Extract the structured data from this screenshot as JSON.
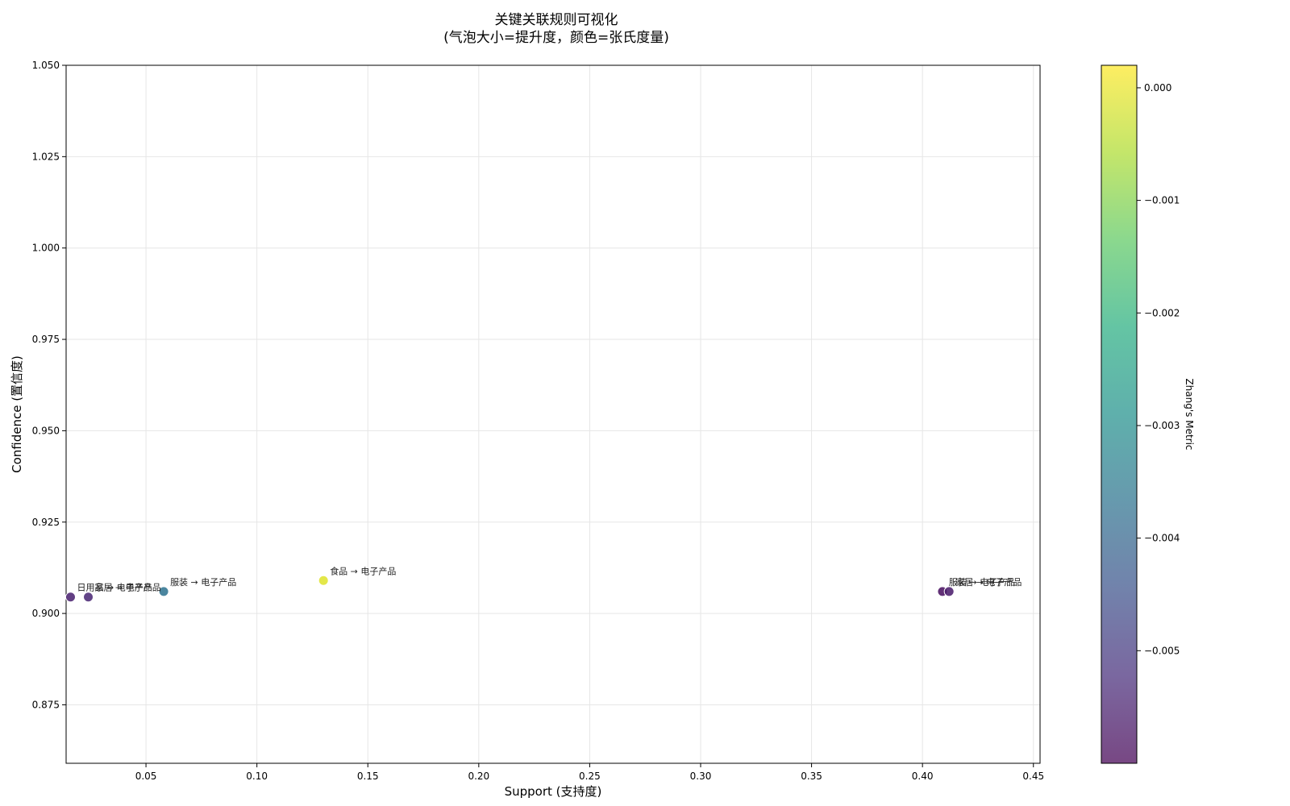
{
  "chart_data": {
    "type": "scatter",
    "title": "关键关联规则可视化",
    "subtitle": "(气泡大小=提升度，颜色=张氏度量)",
    "xlabel": "Support (支持度)",
    "ylabel": "Confidence (置信度)",
    "xlim": [
      0.014,
      0.453
    ],
    "ylim": [
      0.859,
      1.05
    ],
    "x_ticks": [
      0.05,
      0.1,
      0.15,
      0.2,
      0.25,
      0.3,
      0.35,
      0.4,
      0.45
    ],
    "x_tick_labels": [
      "0.05",
      "0.10",
      "0.15",
      "0.20",
      "0.25",
      "0.30",
      "0.35",
      "0.40",
      "0.45"
    ],
    "y_ticks": [
      0.875,
      0.9,
      0.925,
      0.95,
      0.975,
      1.0,
      1.025,
      1.05
    ],
    "y_tick_labels": [
      "0.875",
      "0.900",
      "0.925",
      "0.950",
      "0.975",
      "1.000",
      "1.025",
      "1.050"
    ],
    "grid": true,
    "colorbar": {
      "label": "Zhang's Metric",
      "range": [
        -0.006,
        0.0002
      ],
      "ticks": [
        0.0,
        -0.001,
        -0.002,
        -0.003,
        -0.004,
        -0.005
      ],
      "tick_labels": [
        "0.000",
        "−0.001",
        "−0.002",
        "−0.003",
        "−0.004",
        "−0.005"
      ],
      "colormap": "viridis"
    },
    "points": [
      {
        "x": 0.016,
        "y": 0.9045,
        "color_value": -0.0055,
        "label": "日用品 → 电子产品"
      },
      {
        "x": 0.024,
        "y": 0.9045,
        "color_value": -0.0054,
        "label": "家居 → 电子产品"
      },
      {
        "x": 0.058,
        "y": 0.906,
        "color_value": -0.0037,
        "label": "服装 → 电子产品"
      },
      {
        "x": 0.13,
        "y": 0.909,
        "color_value": -0.0001,
        "label": "食品 → 电子产品"
      },
      {
        "x": 0.409,
        "y": 0.906,
        "color_value": -0.0058,
        "label": "服装 → 电子产品"
      },
      {
        "x": 0.412,
        "y": 0.906,
        "color_value": -0.0056,
        "label": "家居 → 电子产品"
      }
    ]
  }
}
